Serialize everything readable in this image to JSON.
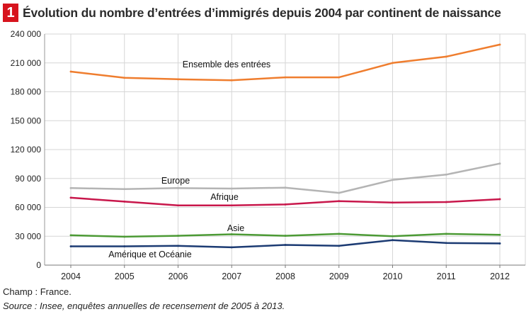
{
  "figure": {
    "number": "1",
    "title": "Évolution du nombre d’entrées d’immigrés depuis 2004 par continent de naissance"
  },
  "notes": {
    "champ": "Champ : France.",
    "source": "Source : Insee, enquêtes annuelles de recensement de 2005 à 2013."
  },
  "chart_data": {
    "type": "line",
    "title": "Évolution du nombre d’entrées d’immigrés depuis 2004 par continent de naissance",
    "categories": [
      "2004",
      "2005",
      "2006",
      "2007",
      "2008",
      "2009",
      "2010",
      "2011",
      "2012"
    ],
    "ylim": [
      0,
      240000
    ],
    "yticks": [
      0,
      30000,
      60000,
      90000,
      120000,
      150000,
      180000,
      210000,
      240000
    ],
    "ytick_labels": [
      "0",
      "30 000",
      "60 000",
      "90 000",
      "120 000",
      "150 000",
      "180 000",
      "210 000",
      "240 000"
    ],
    "grid": true,
    "series": [
      {
        "name": "Ensemble des entrées",
        "color": "#ef7d2e",
        "values": [
          201000,
          194500,
          193000,
          192000,
          195000,
          195000,
          210000,
          216500,
          229000
        ]
      },
      {
        "name": "Europe",
        "color": "#b4b4b4",
        "values": [
          80000,
          79000,
          80000,
          79500,
          80500,
          75000,
          88500,
          94000,
          105500
        ]
      },
      {
        "name": "Afrique",
        "color": "#c8174b",
        "values": [
          70000,
          66000,
          62000,
          62000,
          63000,
          66500,
          65000,
          65500,
          68500
        ]
      },
      {
        "name": "Asie",
        "color": "#4c9a35",
        "values": [
          31000,
          29500,
          30500,
          32000,
          30500,
          32500,
          30000,
          32500,
          31500
        ]
      },
      {
        "name": "Amérique et Océanie",
        "color": "#1c3b73",
        "values": [
          19500,
          19500,
          20000,
          18500,
          21000,
          20000,
          26000,
          23000,
          22500
        ]
      }
    ]
  }
}
